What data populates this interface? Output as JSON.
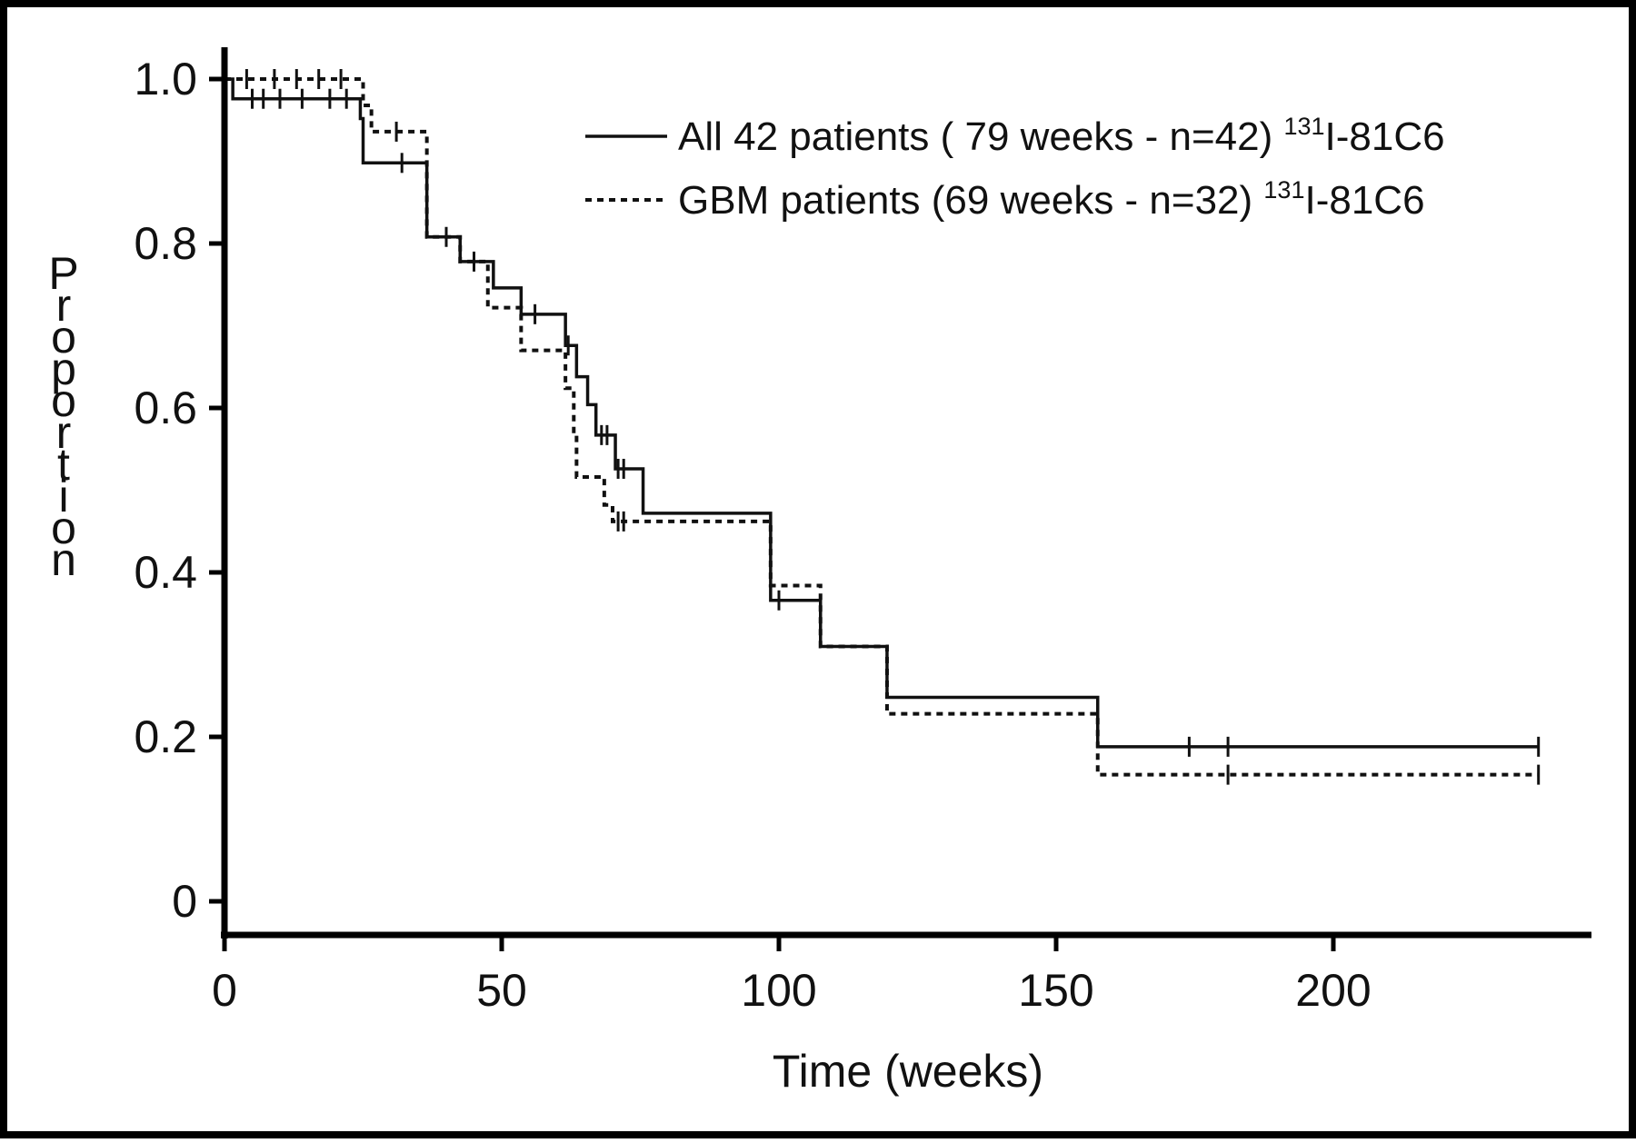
{
  "chart_data": {
    "type": "line",
    "subtype": "kaplan-meier-step",
    "title": "",
    "xlabel": "Time (weeks)",
    "ylabel": "Proportion",
    "xlim": [
      0,
      245
    ],
    "ylim": [
      -0.04,
      1.04
    ],
    "x_ticks": [
      0,
      50,
      100,
      150,
      200
    ],
    "x_tick_labels": [
      "0",
      "50",
      "100",
      "150",
      "200"
    ],
    "y_ticks": [
      0,
      0.2,
      0.4,
      0.6,
      0.8,
      1.0
    ],
    "y_tick_labels": [
      "0",
      "0.2",
      "0.4",
      "0.6",
      "0.8",
      "1.0"
    ],
    "grid": false,
    "legend_position": "top-right",
    "series": [
      {
        "name": "All 42 patients ( 79 weeks - n=42) ",
        "name_isotope": "131",
        "name_suffix": "I-81C6",
        "line_style": "solid",
        "color": "#111111",
        "steps": [
          [
            0,
            1.0
          ],
          [
            1.5,
            0.976
          ],
          [
            23,
            0.976
          ],
          [
            24.5,
            0.952
          ],
          [
            25,
            0.898
          ],
          [
            36,
            0.898
          ],
          [
            36.5,
            0.808
          ],
          [
            42,
            0.808
          ],
          [
            42.5,
            0.778
          ],
          [
            48,
            0.778
          ],
          [
            48.5,
            0.746
          ],
          [
            53,
            0.746
          ],
          [
            53.5,
            0.714
          ],
          [
            61,
            0.714
          ],
          [
            61.5,
            0.676
          ],
          [
            63,
            0.676
          ],
          [
            63.5,
            0.638
          ],
          [
            65,
            0.638
          ],
          [
            65.5,
            0.604
          ],
          [
            66.5,
            0.604
          ],
          [
            67,
            0.567
          ],
          [
            70,
            0.567
          ],
          [
            70.5,
            0.526
          ],
          [
            75,
            0.526
          ],
          [
            75.5,
            0.472
          ],
          [
            98,
            0.472
          ],
          [
            98.5,
            0.366
          ],
          [
            107,
            0.366
          ],
          [
            107.5,
            0.31
          ],
          [
            119,
            0.31
          ],
          [
            119.5,
            0.248
          ],
          [
            157,
            0.248
          ],
          [
            157.5,
            0.188
          ],
          [
            237,
            0.188
          ]
        ],
        "censor_x": [
          5,
          7,
          10,
          14,
          19,
          22,
          32,
          40,
          45,
          56,
          62,
          68,
          69,
          71,
          72,
          100,
          174,
          181,
          237
        ]
      },
      {
        "name": "GBM patients (69 weeks - n=32) ",
        "name_isotope": "131",
        "name_suffix": "I-81C6",
        "line_style": "dotted",
        "color": "#111111",
        "steps": [
          [
            0,
            1.0
          ],
          [
            24.5,
            1.0
          ],
          [
            25,
            0.968
          ],
          [
            26,
            0.968
          ],
          [
            26.5,
            0.936
          ],
          [
            36,
            0.936
          ],
          [
            36.5,
            0.808
          ],
          [
            42,
            0.808
          ],
          [
            42.5,
            0.778
          ],
          [
            47,
            0.778
          ],
          [
            47.5,
            0.722
          ],
          [
            53,
            0.722
          ],
          [
            53.5,
            0.67
          ],
          [
            61,
            0.67
          ],
          [
            61.5,
            0.624
          ],
          [
            62.5,
            0.624
          ],
          [
            63,
            0.568
          ],
          [
            63.5,
            0.516
          ],
          [
            68,
            0.516
          ],
          [
            68.5,
            0.482
          ],
          [
            69.5,
            0.482
          ],
          [
            70,
            0.462
          ],
          [
            98,
            0.462
          ],
          [
            98.5,
            0.384
          ],
          [
            107,
            0.384
          ],
          [
            107.5,
            0.31
          ],
          [
            119,
            0.31
          ],
          [
            119.5,
            0.228
          ],
          [
            157,
            0.228
          ],
          [
            157.5,
            0.154
          ],
          [
            237,
            0.154
          ]
        ],
        "censor_x": [
          4,
          9,
          13,
          17,
          21,
          31,
          71,
          72,
          181,
          237
        ]
      }
    ]
  }
}
